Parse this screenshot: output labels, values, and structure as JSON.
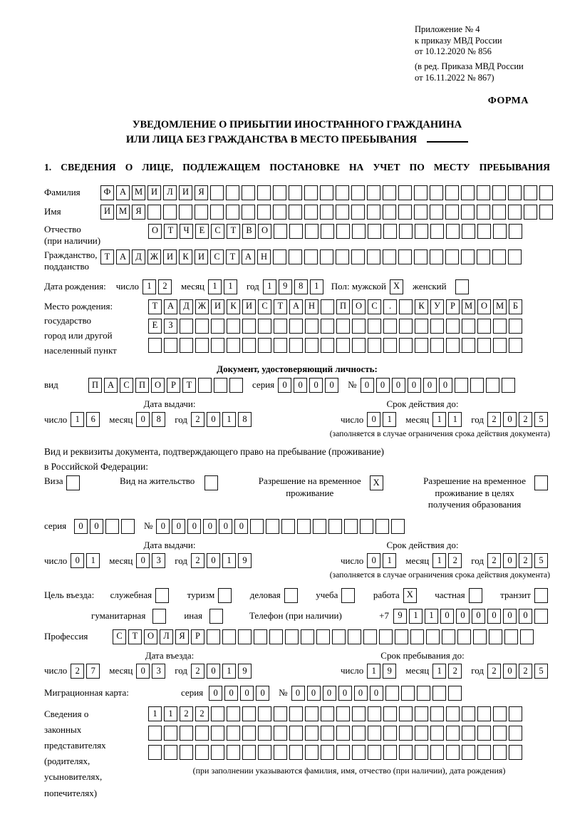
{
  "page": {
    "appendix": [
      "Приложение № 4",
      "к приказу МВД России",
      "от 10.12.2020 № 856"
    ],
    "amendment": [
      "(в ред. Приказа МВД России",
      "от 16.11.2022 № 867)"
    ],
    "form_label": "ФОРМА",
    "title_line1": "УВЕДОМЛЕНИЕ О ПРИБЫТИИ ИНОСТРАННОГО ГРАЖДАНИНА",
    "title_line2": "ИЛИ ЛИЦА БЕЗ ГРАЖДАНСТВА В МЕСТО ПРЕБЫВАНИЯ",
    "section1_heading": "1. СВЕДЕНИЯ О ЛИЦЕ, ПОДЛЕЖАЩЕМ ПОСТАНОВКЕ НА УЧЕТ ПО МЕСТУ ПРЕБЫВАНИЯ"
  },
  "words": {
    "day": "число",
    "month": "месяц",
    "year": "год",
    "series": "серия",
    "number": "№"
  },
  "person": {
    "surname_label": "Фамилия",
    "surname": {
      "value": "ФАМИЛИЯ",
      "cells": 29
    },
    "firstname_label": "Имя",
    "firstname": {
      "value": "ИМЯ",
      "cells": 29
    },
    "patronymic_label": "Отчество\n(при наличии)",
    "patronymic": {
      "value": "ОТЧЕСТВО",
      "cells": 24
    },
    "citizenship_label": "Гражданство,\nподданство",
    "citizenship": {
      "value": "ТАДЖИКИСТАН",
      "cells": 27
    },
    "birth_date_label": "Дата рождения:",
    "birth_day": {
      "value": "12",
      "cells": 2
    },
    "birth_month": {
      "value": "11",
      "cells": 2
    },
    "birth_year": {
      "value": "1981",
      "cells": 4
    },
    "gender_label": "Пол: мужской",
    "gender_male": {
      "value": "X",
      "cells": 1
    },
    "gender_female_label": "женский",
    "gender_female": {
      "value": "",
      "cells": 1
    },
    "birth_place_label": "Место рождения:\nгосударство\nгород или другой\nнаселенный пункт",
    "birth_place_row1": {
      "value": "ТАДЖИКИСТАН ПОС. КУРМОМБ",
      "cells": 24
    },
    "birth_place_row2": {
      "value": "ЕЗ",
      "cells": 24
    },
    "birth_place_row3": {
      "value": "",
      "cells": 24
    }
  },
  "identity_doc": {
    "header": "Документ, удостоверяющий личность:",
    "type_label": "вид",
    "type": {
      "value": "ПАСПОРТ",
      "cells": 10
    },
    "series": {
      "value": "0000",
      "cells": 4
    },
    "number": {
      "value": "000000",
      "cells": 10
    },
    "issue_header": "Дата выдачи:",
    "issue_day": {
      "value": "16",
      "cells": 2
    },
    "issue_month": {
      "value": "08",
      "cells": 2
    },
    "issue_year": {
      "value": "2018",
      "cells": 4
    },
    "expiry_header": "Срок действия до:",
    "expiry_day": {
      "value": "01",
      "cells": 2
    },
    "expiry_month": {
      "value": "11",
      "cells": 2
    },
    "expiry_year": {
      "value": "2025",
      "cells": 4
    },
    "expiry_note": "(заполняется в случае ограничения срока действия документа)"
  },
  "residence_doc": {
    "intro_line1": "Вид и реквизиты документа, подтверждающего право на пребывание (проживание)",
    "intro_line2": "в Российской Федерации:",
    "options": [
      {
        "label": "Виза",
        "box": {
          "value": "",
          "cells": 1
        }
      },
      {
        "label": "Вид на жительство",
        "box": {
          "value": "",
          "cells": 1
        }
      },
      {
        "label": "Разрешение на временное\nпроживание",
        "box": {
          "value": "X",
          "cells": 1
        }
      },
      {
        "label": "Разрешение на временное\nпроживание в целях\nполучения образования",
        "box": {
          "value": "",
          "cells": 1
        }
      }
    ],
    "series": {
      "value": "00",
      "cells": 4
    },
    "number": {
      "value": "000000",
      "cells": 16
    },
    "issue_header": "Дата выдачи:",
    "issue_day": {
      "value": "01",
      "cells": 2
    },
    "issue_month": {
      "value": "03",
      "cells": 2
    },
    "issue_year": {
      "value": "2019",
      "cells": 4
    },
    "expiry_header": "Срок действия до:",
    "expiry_day": {
      "value": "01",
      "cells": 2
    },
    "expiry_month": {
      "value": "12",
      "cells": 2
    },
    "expiry_year": {
      "value": "2025",
      "cells": 4
    },
    "expiry_note": "(заполняется в случае ограничения срока действия документа)"
  },
  "visit": {
    "purpose_label": "Цель въезда:",
    "purposes_row1": [
      {
        "label": "служебная",
        "box": {
          "value": "",
          "cells": 1
        }
      },
      {
        "label": "туризм",
        "box": {
          "value": "",
          "cells": 1
        }
      },
      {
        "label": "деловая",
        "box": {
          "value": "",
          "cells": 1
        }
      },
      {
        "label": "учеба",
        "box": {
          "value": "",
          "cells": 1
        }
      },
      {
        "label": "работа",
        "box": {
          "value": "X",
          "cells": 1
        }
      },
      {
        "label": "частная",
        "box": {
          "value": "",
          "cells": 1
        }
      },
      {
        "label": "транзит",
        "box": {
          "value": "",
          "cells": 1
        }
      }
    ],
    "purposes_row2": [
      {
        "label": "гуманитарная",
        "box": {
          "value": "",
          "cells": 1
        }
      },
      {
        "label": "иная",
        "box": {
          "value": "",
          "cells": 1
        }
      }
    ],
    "phone_label": "Телефон (при наличии)",
    "phone_prefix": "+7",
    "phone": {
      "value": "911000000",
      "cells": 10
    },
    "profession_label": "Профессия",
    "profession": {
      "value": "СТОЛЯР",
      "cells": 27
    },
    "entry_header": "Дата въезда:",
    "entry_day": {
      "value": "27",
      "cells": 2
    },
    "entry_month": {
      "value": "03",
      "cells": 2
    },
    "entry_year": {
      "value": "2019",
      "cells": 4
    },
    "stay_header": "Срок пребывания до:",
    "stay_day": {
      "value": "19",
      "cells": 2
    },
    "stay_month": {
      "value": "12",
      "cells": 2
    },
    "stay_year": {
      "value": "2025",
      "cells": 4
    }
  },
  "migration_card": {
    "label": "Миграционная карта:",
    "series": {
      "value": "0000",
      "cells": 4
    },
    "number": {
      "value": "000000",
      "cells": 11
    }
  },
  "legal_reps": {
    "label": "Сведения о\nзаконных\nпредставителях\n(родителях,\nусыновителях,\nпопечителях)",
    "row1": {
      "value": "1122",
      "cells": 24
    },
    "row2": {
      "value": "",
      "cells": 24
    },
    "row3": {
      "value": "",
      "cells": 24
    },
    "note": "(при заполнении указываются фамилия, имя, отчество (при наличии), дата рождения)"
  }
}
